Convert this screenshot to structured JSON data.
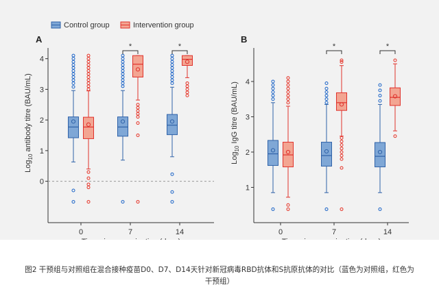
{
  "legend": {
    "control": "Control group",
    "intervention": "Intervention group"
  },
  "colors": {
    "control_stroke": "#2f62a8",
    "control_fill": "#7fa7d6",
    "control_point": "#1a63c7",
    "intervention_stroke": "#e0312b",
    "intervention_fill": "#f3a592",
    "intervention_point": "#e53125",
    "axis": "#333333"
  },
  "caption": {
    "line1": "图2 干预组与对照组在混合接种疫苗D0、D7、D14天针对新冠病毒RBD抗体和S抗原抗体的对比（蓝色为对照组，红色为",
    "line2": "干预组）"
  },
  "chart_data": [
    {
      "panel": "A",
      "type": "box",
      "xlabel": "Time since vaccination (days)",
      "ylabel_prefix": "Log",
      "ylabel_sub": "10",
      "ylabel_suffix": " antibody titre (BAU/mL)",
      "categories": [
        "0",
        "7",
        "14"
      ],
      "ylim": [
        -1.35,
        4.35
      ],
      "yticks": [
        "0",
        "1",
        "2",
        "3",
        "4"
      ],
      "reference_line": 0,
      "significance": [
        {
          "category": "7",
          "label": "*"
        },
        {
          "category": "14",
          "label": "*"
        }
      ],
      "series": [
        {
          "name": "Control group",
          "boxes": [
            {
              "category": "0",
              "whisker_low": 0.63,
              "q1": 1.42,
              "median": 1.77,
              "q3": 2.1,
              "whisker_high": 2.96,
              "mean": 1.95,
              "outliers": [
                -0.3,
                -0.67,
                3.08,
                3.2,
                3.3,
                3.4,
                3.5,
                3.6,
                3.7,
                3.8,
                3.9,
                4.0,
                4.1
              ]
            },
            {
              "category": "7",
              "whisker_low": 0.69,
              "q1": 1.47,
              "median": 1.77,
              "q3": 2.1,
              "whisker_high": 2.96,
              "mean": 1.95,
              "outliers": [
                -0.67,
                3.1,
                3.2,
                3.3,
                3.4,
                3.5,
                3.6,
                3.7,
                3.8,
                3.9,
                4.0,
                4.1
              ]
            },
            {
              "category": "14",
              "whisker_low": 0.8,
              "q1": 1.52,
              "median": 1.83,
              "q3": 2.18,
              "whisker_high": 3.07,
              "mean": 1.95,
              "outliers": [
                0.23,
                -0.35,
                -0.67,
                3.2,
                3.3,
                3.4,
                3.5,
                3.6,
                3.7,
                3.8,
                3.9,
                4.0,
                4.1
              ]
            }
          ]
        },
        {
          "name": "Intervention group",
          "boxes": [
            {
              "category": "0",
              "whisker_low": 0.4,
              "q1": 1.39,
              "median": 1.77,
              "q3": 2.09,
              "whisker_high": 2.95,
              "mean": 1.85,
              "outliers": [
                0.3,
                0.1,
                -0.1,
                -0.2,
                -0.67,
                3.0,
                3.1,
                3.2,
                3.3,
                3.4,
                3.5,
                3.6,
                3.7,
                3.8,
                3.9,
                4.0,
                4.1
              ]
            },
            {
              "category": "7",
              "whisker_low": 2.65,
              "q1": 3.4,
              "median": 3.82,
              "q3": 4.1,
              "whisker_high": 4.1,
              "mean": 3.65,
              "outliers": [
                2.5,
                2.4,
                2.3,
                2.2,
                2.1,
                1.9,
                1.5,
                -0.67
              ]
            },
            {
              "category": "14",
              "whisker_low": 3.38,
              "q1": 3.78,
              "median": 3.98,
              "q3": 4.1,
              "whisker_high": 4.1,
              "mean": 3.9,
              "outliers": [
                3.2,
                3.1,
                3.0,
                2.9,
                2.8
              ]
            }
          ]
        }
      ]
    },
    {
      "panel": "B",
      "type": "box",
      "xlabel": "Time since vaccination (days)",
      "ylabel_prefix": "Log",
      "ylabel_sub": "10",
      "ylabel_suffix": " IgG titre (BAU/mL)",
      "categories": [
        "0",
        "7",
        "14"
      ],
      "ylim": [
        0,
        4.95
      ],
      "yticks": [
        "1",
        "2",
        "3",
        "4"
      ],
      "significance": [
        {
          "category": "7",
          "label": "*"
        },
        {
          "category": "14",
          "label": "*"
        }
      ],
      "series": [
        {
          "name": "Control group",
          "boxes": [
            {
              "category": "0",
              "whisker_low": 0.85,
              "q1": 1.62,
              "median": 1.95,
              "q3": 2.33,
              "whisker_high": 3.4,
              "mean": 2.05,
              "outliers": [
                0.38,
                3.5,
                3.6,
                3.7,
                3.8,
                3.9,
                4.0
              ]
            },
            {
              "category": "7",
              "whisker_low": 0.85,
              "q1": 1.6,
              "median": 1.9,
              "q3": 2.28,
              "whisker_high": 3.35,
              "mean": 2.02,
              "outliers": [
                0.38,
                3.4,
                3.5,
                3.6,
                3.7,
                3.8,
                3.95
              ]
            },
            {
              "category": "14",
              "whisker_low": 0.85,
              "q1": 1.58,
              "median": 1.88,
              "q3": 2.27,
              "whisker_high": 3.35,
              "mean": 2.0,
              "outliers": [
                0.38,
                3.45,
                3.6,
                3.75,
                3.9
              ]
            }
          ]
        },
        {
          "name": "Intervention group",
          "boxes": [
            {
              "category": "0",
              "whisker_low": 0.72,
              "q1": 1.58,
              "median": 1.92,
              "q3": 2.28,
              "whisker_high": 3.3,
              "mean": 2.0,
              "outliers": [
                0.38,
                0.5,
                3.4,
                3.5,
                3.6,
                3.7,
                3.8,
                3.9,
                4.0,
                4.1
              ]
            },
            {
              "category": "7",
              "whisker_low": 2.45,
              "q1": 3.18,
              "median": 3.4,
              "q3": 3.68,
              "whisker_high": 4.45,
              "mean": 3.35,
              "outliers": [
                0.38,
                1.55,
                1.8,
                1.9,
                2.0,
                2.1,
                2.2,
                2.3,
                2.4,
                4.55,
                4.6
              ]
            },
            {
              "category": "14",
              "whisker_low": 2.6,
              "q1": 3.32,
              "median": 3.55,
              "q3": 3.82,
              "whisker_high": 4.5,
              "mean": 3.58,
              "outliers": [
                2.45,
                4.6
              ]
            }
          ]
        }
      ]
    }
  ]
}
